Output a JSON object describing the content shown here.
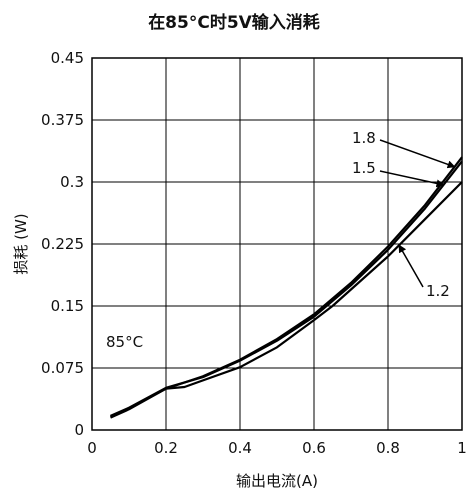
{
  "chart_data": {
    "type": "line",
    "title": "在85°C时5V输入消耗",
    "xlabel": "输出电流(A)",
    "ylabel": "损耗 (W)",
    "xlim": [
      0,
      1
    ],
    "ylim": [
      0,
      0.45
    ],
    "xticks": [
      0,
      0.2,
      0.4,
      0.6,
      0.8,
      1
    ],
    "xtick_labels": [
      "0",
      "0.2",
      "0.4",
      "0.6",
      "0.8",
      "1"
    ],
    "yticks": [
      0,
      0.075,
      0.15,
      0.225,
      0.3,
      0.375,
      0.45
    ],
    "ytick_labels": [
      "0",
      "0.075",
      "0.15",
      "0.225",
      "0.3",
      "0.375",
      "0.45"
    ],
    "grid": true,
    "annotation": "85°C",
    "series": [
      {
        "name": "1.8",
        "x": [
          0.05,
          0.1,
          0.2,
          0.3,
          0.4,
          0.5,
          0.6,
          0.7,
          0.8,
          0.9,
          1.0
        ],
        "y": [
          0.016,
          0.026,
          0.05,
          0.065,
          0.085,
          0.11,
          0.14,
          0.178,
          0.222,
          0.272,
          0.33
        ]
      },
      {
        "name": "1.5",
        "x": [
          0.05,
          0.1,
          0.2,
          0.3,
          0.4,
          0.5,
          0.6,
          0.7,
          0.8,
          0.9,
          1.0
        ],
        "y": [
          0.017,
          0.027,
          0.051,
          0.064,
          0.084,
          0.108,
          0.137,
          0.175,
          0.218,
          0.268,
          0.325
        ]
      },
      {
        "name": "1.2",
        "x": [
          0.05,
          0.1,
          0.2,
          0.25,
          0.3,
          0.4,
          0.5,
          0.6,
          0.65,
          0.8,
          0.9,
          1.0
        ],
        "y": [
          0.015,
          0.025,
          0.05,
          0.052,
          0.06,
          0.076,
          0.1,
          0.133,
          0.15,
          0.21,
          0.255,
          0.3
        ]
      }
    ]
  }
}
